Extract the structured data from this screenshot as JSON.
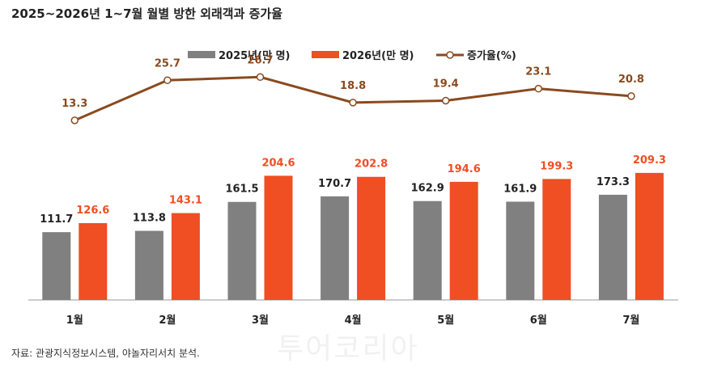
{
  "title": "2025~2026년 1~7월 월별 방한 외래객과 증가율",
  "source": "자료: 관광지식정보시스템, 야놀자리서치 분석.",
  "watermark": "투어코리아",
  "colors": {
    "s2025": "#808080",
    "s2026": "#f04e23",
    "rate": "#8a4a1e"
  },
  "chart_data": {
    "type": "bar",
    "categories": [
      "1월",
      "2월",
      "3월",
      "4월",
      "5월",
      "6월",
      "7월"
    ],
    "series": [
      {
        "name": "2025년(만 명)",
        "values": [
          111.7,
          113.8,
          161.5,
          170.7,
          162.9,
          161.9,
          173.3
        ]
      },
      {
        "name": "2026년(만 명)",
        "values": [
          126.6,
          143.1,
          204.6,
          202.8,
          194.6,
          199.3,
          209.3
        ]
      },
      {
        "name": "증가율(%)",
        "type": "line",
        "values": [
          13.3,
          25.7,
          26.7,
          18.8,
          19.4,
          23.1,
          20.8
        ]
      }
    ],
    "legend_position": "top",
    "grid": false
  }
}
